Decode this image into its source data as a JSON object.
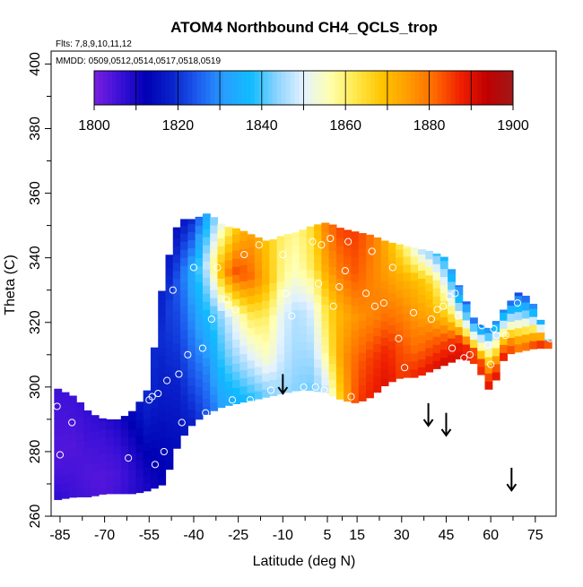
{
  "chart_data": {
    "type": "heatmap",
    "title": "ATOM4 Northbound CH4_QCLS_trop",
    "subtitle_flights": "Flts: 7,8,9,10,11,12",
    "subtitle_dates": "MMDD: 0509,0512,0514,0517,0518,0519",
    "xlabel": "Latitude (deg N)",
    "ylabel": "Theta (C)",
    "xlim": [
      -88,
      82
    ],
    "ylim": [
      260,
      404
    ],
    "x_ticks": [
      -85,
      -70,
      -55,
      -40,
      -25,
      -10,
      5,
      15,
      30,
      45,
      60,
      75
    ],
    "y_ticks": [
      260,
      280,
      300,
      320,
      340,
      360,
      380,
      400
    ],
    "colorbar": {
      "min": 1800,
      "max": 1900,
      "ticks": [
        1800,
        1820,
        1840,
        1860,
        1880,
        1900
      ],
      "colors": [
        "#7b1fe0",
        "#3a10d8",
        "#0000b4",
        "#0a24cc",
        "#1e5ef0",
        "#28a0ff",
        "#10bcff",
        "#8ed4ff",
        "#e4f2ff",
        "#ffffb0",
        "#ffe84a",
        "#ffc400",
        "#ff9c00",
        "#ff6a00",
        "#f02000",
        "#c00000",
        "#a01818"
      ]
    },
    "field": {
      "cols": [
        -87,
        -80,
        -75,
        -70,
        -65,
        -60,
        -55,
        -50,
        -45,
        -40,
        -35,
        -30,
        -25,
        -20,
        -15,
        -10,
        -5,
        0,
        5,
        10,
        15,
        20,
        25,
        30,
        35,
        40,
        45,
        50,
        55,
        60,
        65,
        70,
        75,
        80
      ],
      "bottom": [
        265,
        266,
        266,
        267,
        267,
        267,
        268,
        270,
        283,
        289,
        292,
        294,
        295,
        296,
        297,
        298,
        299,
        299,
        298,
        296,
        295,
        297,
        301,
        303,
        303,
        305,
        307,
        309,
        307,
        298,
        310,
        311,
        312,
        312
      ],
      "top": [
        300,
        297,
        292,
        290,
        290,
        293,
        300,
        335,
        352,
        352,
        354,
        350,
        349,
        347,
        345,
        347,
        348,
        350,
        351,
        349,
        348,
        347,
        345,
        344,
        343,
        342,
        340,
        330,
        320,
        318,
        325,
        330,
        325,
        313
      ],
      "values": [
        [
          1808,
          1806,
          1805,
          1804,
          1806,
          1808,
          1810,
          1812,
          1815,
          1818,
          1825,
          1832,
          1835,
          1838,
          1842,
          1845,
          1843,
          1842,
          1848,
          1870,
          1885,
          1888,
          1890,
          1885,
          1888,
          1890,
          1892,
          1890,
          1885,
          1892,
          1890,
          1880,
          1890,
          1895
        ],
        [
          1805,
          1805,
          1804,
          1804,
          1805,
          1808,
          1812,
          1815,
          1818,
          1825,
          1830,
          1840,
          1845,
          1850,
          1855,
          1848,
          1845,
          1846,
          1860,
          1875,
          1882,
          1885,
          1887,
          1883,
          1880,
          1882,
          1883,
          1888,
          1885,
          1882,
          1880,
          1870,
          1875,
          1892
        ],
        [
          1804,
          1804,
          1805,
          1805,
          1806,
          1810,
          1815,
          1818,
          1822,
          1830,
          1838,
          1845,
          1855,
          1862,
          1860,
          1850,
          1846,
          1850,
          1865,
          1872,
          1876,
          1878,
          1880,
          1878,
          1875,
          1872,
          1865,
          1860,
          1858,
          1865,
          1860,
          1850,
          1860,
          1885
        ],
        [
          1805,
          1805,
          1806,
          1806,
          1808,
          1812,
          1818,
          1820,
          1825,
          1835,
          1850,
          1875,
          1885,
          1880,
          1870,
          1858,
          1855,
          1862,
          1875,
          1880,
          1883,
          1878,
          1875,
          1872,
          1870,
          1865,
          1850,
          1840,
          1845,
          1850,
          1845,
          1835,
          1840,
          1860
        ],
        [
          1806,
          1806,
          1807,
          1808,
          1810,
          1815,
          1820,
          1818,
          1815,
          1820,
          1835,
          1855,
          1870,
          1875,
          1868,
          1860,
          1858,
          1865,
          1880,
          1885,
          1885,
          1880,
          1872,
          1862,
          1850,
          1842,
          1835,
          1825,
          1825,
          1830,
          1828,
          1822,
          1830,
          1845
        ]
      ],
      "mask_above_top": true
    },
    "points": [
      {
        "x": -86,
        "y": 294
      },
      {
        "x": -85,
        "y": 279
      },
      {
        "x": -81,
        "y": 289
      },
      {
        "x": -63,
        "y": 301
      },
      {
        "x": -62,
        "y": 278
      },
      {
        "x": -57,
        "y": 306
      },
      {
        "x": -58,
        "y": 302
      },
      {
        "x": -56,
        "y": 305
      },
      {
        "x": -55,
        "y": 296
      },
      {
        "x": -54,
        "y": 297
      },
      {
        "x": -53,
        "y": 276
      },
      {
        "x": -52,
        "y": 298
      },
      {
        "x": -50,
        "y": 280
      },
      {
        "x": -49,
        "y": 302
      },
      {
        "x": -47,
        "y": 330
      },
      {
        "x": -45,
        "y": 304
      },
      {
        "x": -44,
        "y": 289
      },
      {
        "x": -42,
        "y": 310
      },
      {
        "x": -40,
        "y": 337
      },
      {
        "x": -37,
        "y": 312
      },
      {
        "x": -36,
        "y": 292
      },
      {
        "x": -34,
        "y": 321
      },
      {
        "x": -32,
        "y": 337
      },
      {
        "x": -29,
        "y": 327
      },
      {
        "x": -27,
        "y": 296
      },
      {
        "x": -26,
        "y": 324
      },
      {
        "x": -23,
        "y": 341
      },
      {
        "x": -21,
        "y": 296
      },
      {
        "x": -18,
        "y": 344
      },
      {
        "x": -14,
        "y": 299
      },
      {
        "x": -10,
        "y": 341
      },
      {
        "x": -9,
        "y": 329
      },
      {
        "x": -7,
        "y": 322
      },
      {
        "x": -3,
        "y": 300
      },
      {
        "x": 0,
        "y": 345
      },
      {
        "x": 1,
        "y": 300
      },
      {
        "x": 2,
        "y": 332
      },
      {
        "x": 3,
        "y": 344
      },
      {
        "x": 4,
        "y": 299
      },
      {
        "x": 6,
        "y": 346
      },
      {
        "x": 7,
        "y": 325
      },
      {
        "x": 9,
        "y": 331
      },
      {
        "x": 11,
        "y": 336
      },
      {
        "x": 12,
        "y": 345
      },
      {
        "x": 13,
        "y": 297
      },
      {
        "x": 17,
        "y": 294
      },
      {
        "x": 18,
        "y": 329
      },
      {
        "x": 20,
        "y": 342
      },
      {
        "x": 21,
        "y": 325
      },
      {
        "x": 24,
        "y": 326
      },
      {
        "x": 27,
        "y": 337
      },
      {
        "x": 29,
        "y": 315
      },
      {
        "x": 31,
        "y": 306
      },
      {
        "x": 34,
        "y": 323
      },
      {
        "x": 37,
        "y": 345
      },
      {
        "x": 40,
        "y": 321
      },
      {
        "x": 42,
        "y": 324
      },
      {
        "x": 44,
        "y": 325
      },
      {
        "x": 46,
        "y": 328
      },
      {
        "x": 47,
        "y": 312
      },
      {
        "x": 48,
        "y": 329
      },
      {
        "x": 49,
        "y": 322
      },
      {
        "x": 51,
        "y": 309
      },
      {
        "x": 53,
        "y": 310
      },
      {
        "x": 55,
        "y": 328
      },
      {
        "x": 57,
        "y": 319
      },
      {
        "x": 58,
        "y": 320
      },
      {
        "x": 59,
        "y": 313
      },
      {
        "x": 60,
        "y": 307
      },
      {
        "x": 61,
        "y": 318
      },
      {
        "x": 62,
        "y": 316
      },
      {
        "x": 63,
        "y": 300
      },
      {
        "x": 65,
        "y": 316
      },
      {
        "x": 69,
        "y": 326
      },
      {
        "x": 80,
        "y": 315
      }
    ],
    "arrows": [
      {
        "x": -10,
        "y_top": 304,
        "y_bottom": 298
      },
      {
        "x": 39,
        "y_top": 295,
        "y_bottom": 288
      },
      {
        "x": 45,
        "y_top": 292,
        "y_bottom": 285
      },
      {
        "x": 67,
        "y_top": 275,
        "y_bottom": 268
      }
    ]
  }
}
